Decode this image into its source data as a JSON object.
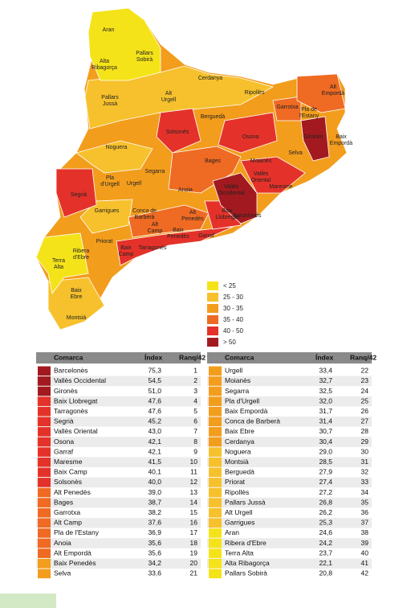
{
  "map": {
    "labels": [
      [
        "Aran"
      ],
      [
        "Alta",
        "Ribagorça"
      ],
      [
        "Pallars",
        "Sobirà"
      ],
      [
        "Cerdanya"
      ],
      [
        "Ripollès"
      ],
      [
        "Alt",
        "Empordà"
      ],
      [
        "Alt",
        "Urgell"
      ],
      [
        "Pallars",
        "Jussà"
      ],
      [
        "Garrotxa"
      ],
      [
        "Pla de",
        "l'Estany"
      ],
      [
        "Berguedà"
      ],
      [
        "Solsonès"
      ],
      [
        "Osona"
      ],
      [
        "Gironès"
      ],
      [
        "Baix",
        "Empordà"
      ],
      [
        "Noguera"
      ],
      [
        "Selva"
      ],
      [
        "Bages"
      ],
      [
        "Moianès"
      ],
      [
        "Segarra"
      ],
      [
        "Pla",
        "d'Urgell"
      ],
      [
        "Urgell"
      ],
      [
        "Vallès",
        "Oriental"
      ],
      [
        "Segrià"
      ],
      [
        "Anoia"
      ],
      [
        "Vallès",
        "Occidental"
      ],
      [
        "Maresme"
      ],
      [
        "Garrigues"
      ],
      [
        "Conca de",
        "Barberà"
      ],
      [
        "Alt",
        "Penedès"
      ],
      [
        "Baix",
        "Llobregat"
      ],
      [
        "Barcelonès"
      ],
      [
        "Alt",
        "Camp"
      ],
      [
        "Baix",
        "Penedès"
      ],
      [
        "Garraf"
      ],
      [
        "Priorat"
      ],
      [
        "Ribera",
        "d'Ebre"
      ],
      [
        "Baix",
        "Camp"
      ],
      [
        "Tarragonès"
      ],
      [
        "Terra",
        "Alta"
      ],
      [
        "Baix",
        "Ebre"
      ],
      [
        "Montsià"
      ]
    ]
  },
  "legend": {
    "classes": [
      {
        "label": "< 25",
        "color": "#f5e31a"
      },
      {
        "label": "25 - 30",
        "color": "#f6c12c"
      },
      {
        "label": "30 - 35",
        "color": "#f39d1d"
      },
      {
        "label": "35 - 40",
        "color": "#ef6a22"
      },
      {
        "label": "40 - 50",
        "color": "#e4322a"
      },
      {
        "label": "> 50",
        "color": "#a21a1f"
      }
    ]
  },
  "tables": [
    {
      "header": [
        "Comarca",
        "Índex",
        "Ranq/42"
      ],
      "rows": [
        {
          "name": "Barcelonès",
          "index": "75,3",
          "rank": 1,
          "color": "#a21a1f"
        },
        {
          "name": "Vallès Occidental",
          "index": "54,5",
          "rank": 2,
          "color": "#a21a1f"
        },
        {
          "name": "Gironès",
          "index": "51,0",
          "rank": 3,
          "color": "#a21a1f"
        },
        {
          "name": "Baix Llobregat",
          "index": "47,6",
          "rank": 4,
          "color": "#e4322a"
        },
        {
          "name": "Tarragonès",
          "index": "47,6",
          "rank": 5,
          "color": "#e4322a"
        },
        {
          "name": "Segrià",
          "index": "45,2",
          "rank": 6,
          "color": "#e4322a"
        },
        {
          "name": "Vallès Oriental",
          "index": "43,0",
          "rank": 7,
          "color": "#e4322a"
        },
        {
          "name": "Osona",
          "index": "42,1",
          "rank": 8,
          "color": "#e4322a"
        },
        {
          "name": "Garraf",
          "index": "42,1",
          "rank": 9,
          "color": "#e4322a"
        },
        {
          "name": "Maresme",
          "index": "41,5",
          "rank": 10,
          "color": "#e4322a"
        },
        {
          "name": "Baix Camp",
          "index": "40,1",
          "rank": 11,
          "color": "#e4322a"
        },
        {
          "name": "Solsonès",
          "index": "40,0",
          "rank": 12,
          "color": "#e4322a"
        },
        {
          "name": "Alt Penedès",
          "index": "39,0",
          "rank": 13,
          "color": "#ef6a22"
        },
        {
          "name": "Bages",
          "index": "38,7",
          "rank": 14,
          "color": "#ef6a22"
        },
        {
          "name": "Garrotxa",
          "index": "38,2",
          "rank": 15,
          "color": "#ef6a22"
        },
        {
          "name": "Alt Camp",
          "index": "37,6",
          "rank": 16,
          "color": "#ef6a22"
        },
        {
          "name": "Pla de l'Estany",
          "index": "36,9",
          "rank": 17,
          "color": "#ef6a22"
        },
        {
          "name": "Anoia",
          "index": "35,6",
          "rank": 18,
          "color": "#ef6a22"
        },
        {
          "name": "Alt Empordà",
          "index": "35,6",
          "rank": 19,
          "color": "#ef6a22"
        },
        {
          "name": "Baix Penedès",
          "index": "34,2",
          "rank": 20,
          "color": "#f39d1d"
        },
        {
          "name": "Selva",
          "index": "33,6",
          "rank": 21,
          "color": "#f39d1d"
        }
      ]
    },
    {
      "header": [
        "Comarca",
        "Índex",
        "Ranq/42"
      ],
      "rows": [
        {
          "name": "Urgell",
          "index": "33,4",
          "rank": 22,
          "color": "#f39d1d"
        },
        {
          "name": "Moianès",
          "index": "32,7",
          "rank": 23,
          "color": "#f39d1d"
        },
        {
          "name": "Segarra",
          "index": "32,5",
          "rank": 24,
          "color": "#f39d1d"
        },
        {
          "name": "Pla d'Urgell",
          "index": "32,0",
          "rank": 25,
          "color": "#f39d1d"
        },
        {
          "name": "Baix Empordà",
          "index": "31,7",
          "rank": 26,
          "color": "#f39d1d"
        },
        {
          "name": "Conca de Barberà",
          "index": "31,4",
          "rank": 27,
          "color": "#f39d1d"
        },
        {
          "name": "Baix Ebre",
          "index": "30,7",
          "rank": 28,
          "color": "#f39d1d"
        },
        {
          "name": "Cerdanya",
          "index": "30,4",
          "rank": 29,
          "color": "#f39d1d"
        },
        {
          "name": "Noguera",
          "index": "29,0",
          "rank": 30,
          "color": "#f6c12c"
        },
        {
          "name": "Montsià",
          "index": "28,5",
          "rank": 31,
          "color": "#f6c12c"
        },
        {
          "name": "Berguedà",
          "index": "27,9",
          "rank": 32,
          "color": "#f6c12c"
        },
        {
          "name": "Priorat",
          "index": "27,4",
          "rank": 33,
          "color": "#f6c12c"
        },
        {
          "name": "Ripollès",
          "index": "27,2",
          "rank": 34,
          "color": "#f6c12c"
        },
        {
          "name": "Pallars Jussà",
          "index": "26,8",
          "rank": 35,
          "color": "#f6c12c"
        },
        {
          "name": "Alt Urgell",
          "index": "26,2",
          "rank": 36,
          "color": "#f6c12c"
        },
        {
          "name": "Garrigues",
          "index": "25,3",
          "rank": 37,
          "color": "#f6c12c"
        },
        {
          "name": "Aran",
          "index": "24,6",
          "rank": 38,
          "color": "#f5e31a"
        },
        {
          "name": "Ribera d'Ebre",
          "index": "24,2",
          "rank": 39,
          "color": "#f5e31a"
        },
        {
          "name": "Terra Alta",
          "index": "23,7",
          "rank": 40,
          "color": "#f5e31a"
        },
        {
          "name": "Alta Ribagorça",
          "index": "22,1",
          "rank": 41,
          "color": "#f5e31a"
        },
        {
          "name": "Pallars Sobirà",
          "index": "20,8",
          "rank": 42,
          "color": "#f5e31a"
        }
      ]
    }
  ]
}
